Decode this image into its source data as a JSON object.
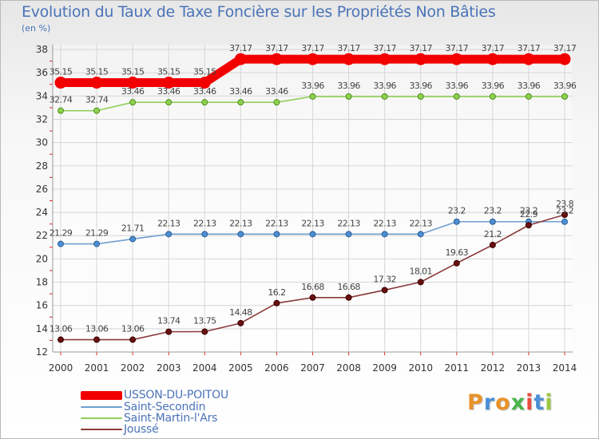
{
  "title": "Evolution du Taux de Taxe Foncière sur les Propriétés Non Bâties",
  "unit_label": "(en %)",
  "logo_text": "Proxiti",
  "logo_colors": [
    "#e8922a",
    "#4c8fd6",
    "#e8922a",
    "#4bb54b",
    "#e84c3d",
    "#4c8fd6",
    "#9bc93f"
  ],
  "chart_data": {
    "type": "line",
    "title": "Evolution du Taux de Taxe Foncière sur les Propriétés Non Bâties",
    "ylabel": "(en %)",
    "xlabel": "",
    "ylim": [
      12,
      38
    ],
    "yticks": [
      12,
      14,
      16,
      18,
      20,
      22,
      24,
      26,
      28,
      30,
      32,
      34,
      36,
      38
    ],
    "grid": true,
    "legend_position": "bottom-left",
    "x": [
      "2000",
      "2001",
      "2002",
      "2003",
      "2004",
      "2005",
      "2006",
      "2007",
      "2008",
      "2009",
      "2010",
      "2011",
      "2012",
      "2013",
      "2014"
    ],
    "series": [
      {
        "name": "USSON-DU-POITOU",
        "color": "#f20000",
        "marker_fill": "#f20000",
        "marker_stroke": "#f20000",
        "emphasis": true,
        "values": [
          35.15,
          35.15,
          35.15,
          35.15,
          35.15,
          37.17,
          37.17,
          37.17,
          37.17,
          37.17,
          37.17,
          37.17,
          37.17,
          37.17,
          37.17
        ],
        "labels": [
          "35.15",
          "35.15",
          "35.15",
          "35.15",
          "35.15",
          "37.17",
          "37.17",
          "37.17",
          "37.17",
          "37.17",
          "37.17",
          "37.17",
          "37.17",
          "37.17",
          "37.17"
        ]
      },
      {
        "name": "Saint-Secondin",
        "color": "#6f9fcf",
        "marker_fill": "#4d8fd0",
        "marker_stroke": "#2a5f9a",
        "emphasis": false,
        "values": [
          21.29,
          21.29,
          21.71,
          22.13,
          22.13,
          22.13,
          22.13,
          22.13,
          22.13,
          22.13,
          22.13,
          23.2,
          23.2,
          23.2,
          23.2
        ],
        "labels": [
          "21.29",
          "21.29",
          "21.71",
          "22.13",
          "22.13",
          "22.13",
          "22.13",
          "22.13",
          "22.13",
          "22.13",
          "22.13",
          "23.2",
          "23.2",
          "23.2",
          "23.2"
        ]
      },
      {
        "name": "Saint-Martin-l'Ars",
        "color": "#8fcf5a",
        "marker_fill": "#8fd14f",
        "marker_stroke": "#4f8f1f",
        "emphasis": false,
        "values": [
          32.74,
          32.74,
          33.46,
          33.46,
          33.46,
          33.46,
          33.46,
          33.96,
          33.96,
          33.96,
          33.96,
          33.96,
          33.96,
          33.96,
          33.96
        ],
        "labels": [
          "32.74",
          "32.74",
          "33.46",
          "33.46",
          "33.46",
          "33.46",
          "33.46",
          "33.96",
          "33.96",
          "33.96",
          "33.96",
          "33.96",
          "33.96",
          "33.96",
          "33.96"
        ]
      },
      {
        "name": "Joussé",
        "color": "#8a3a3a",
        "marker_fill": "#6a1010",
        "marker_stroke": "#3a0000",
        "emphasis": false,
        "values": [
          13.06,
          13.06,
          13.06,
          13.74,
          13.75,
          14.48,
          16.2,
          16.68,
          16.68,
          17.32,
          18.01,
          19.63,
          21.2,
          22.9,
          23.8
        ],
        "labels": [
          "13.06",
          "13.06",
          "13.06",
          "13.74",
          "13.75",
          "14.48",
          "16.2",
          "16.68",
          "16.68",
          "17.32",
          "18.01",
          "19.63",
          "21.2",
          "22.9",
          "23.8"
        ]
      }
    ]
  }
}
